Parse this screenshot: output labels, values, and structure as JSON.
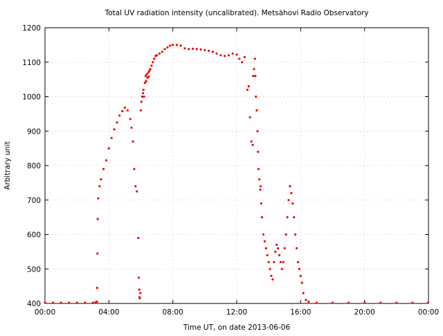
{
  "chart_data": {
    "type": "scatter",
    "title": "Total UV radiation intensity (uncalibrated). Metsähovi Radio Observatory",
    "xlabel": "Time UT, on date 2013-06-06",
    "ylabel": "Arbitrary unit",
    "xlim": [
      "00:00",
      "24:00"
    ],
    "ylim": [
      400,
      1200
    ],
    "x_ticks": [
      "00:00",
      "04:00",
      "08:00",
      "12:00",
      "16:00",
      "20:00",
      "00:00"
    ],
    "y_ticks": [
      "400",
      "500",
      "600",
      "700",
      "800",
      "900",
      "1000",
      "1100",
      "1200"
    ],
    "grid": true,
    "series_color": "#ee0000",
    "series": [
      {
        "x": [
          "00:00",
          "00:30",
          "01:00",
          "01:30",
          "02:00",
          "02:30",
          "03:00",
          "03:10",
          "03:15",
          "03:16",
          "03:17",
          "03:18",
          "03:20",
          "03:25",
          "03:30",
          "03:40",
          "03:50",
          "04:00",
          "04:10",
          "04:20",
          "04:30",
          "04:40",
          "04:50",
          "05:00",
          "05:10",
          "05:20",
          "05:25",
          "05:30",
          "05:35",
          "05:40",
          "05:45",
          "05:50",
          "05:52",
          "05:54",
          "05:55",
          "05:56",
          "05:58",
          "06:00",
          "06:02",
          "06:05",
          "06:08",
          "06:10",
          "06:12",
          "06:15",
          "06:18",
          "06:20",
          "06:22",
          "06:25",
          "06:28",
          "06:30",
          "06:32",
          "06:35",
          "06:40",
          "06:45",
          "06:50",
          "06:55",
          "07:00",
          "07:10",
          "07:20",
          "07:30",
          "07:40",
          "07:50",
          "08:00",
          "08:15",
          "08:30",
          "08:45",
          "09:00",
          "09:15",
          "09:30",
          "09:45",
          "10:00",
          "10:15",
          "10:30",
          "10:45",
          "11:00",
          "11:15",
          "11:30",
          "11:45",
          "12:00",
          "12:10",
          "12:20",
          "12:30",
          "12:40",
          "12:45",
          "12:50",
          "12:55",
          "13:00",
          "13:02",
          "13:05",
          "13:08",
          "13:10",
          "13:12",
          "13:15",
          "13:18",
          "13:20",
          "13:22",
          "13:25",
          "13:28",
          "13:30",
          "13:32",
          "13:35",
          "13:40",
          "13:45",
          "13:50",
          "13:55",
          "14:00",
          "14:05",
          "14:10",
          "14:15",
          "14:20",
          "14:25",
          "14:30",
          "14:35",
          "14:40",
          "14:45",
          "14:50",
          "14:55",
          "15:00",
          "15:05",
          "15:10",
          "15:15",
          "15:20",
          "15:25",
          "15:30",
          "15:35",
          "15:40",
          "15:45",
          "15:50",
          "15:55",
          "16:00",
          "16:05",
          "16:10",
          "16:20",
          "16:30",
          "17:00",
          "18:00",
          "19:00",
          "20:00",
          "21:00",
          "22:00",
          "23:00",
          "23:59"
        ],
        "y": [
          402,
          402,
          402,
          402,
          402,
          402,
          402,
          403,
          405,
          445,
          545,
          645,
          705,
          740,
          760,
          790,
          815,
          850,
          880,
          905,
          925,
          945,
          958,
          968,
          960,
          935,
          910,
          870,
          790,
          740,
          725,
          590,
          475,
          440,
          418,
          415,
          430,
          960,
          985,
          1000,
          1010,
          1020,
          1000,
          1040,
          1060,
          1045,
          1065,
          1055,
          1070,
          1058,
          1075,
          1080,
          1090,
          1100,
          1110,
          1118,
          1120,
          1125,
          1130,
          1138,
          1143,
          1148,
          1150,
          1150,
          1148,
          1140,
          1138,
          1139,
          1138,
          1137,
          1135,
          1133,
          1130,
          1125,
          1120,
          1118,
          1120,
          1125,
          1122,
          1110,
          1100,
          1115,
          1020,
          1030,
          940,
          870,
          860,
          1060,
          1080,
          1110,
          1060,
          1000,
          960,
          900,
          840,
          790,
          760,
          730,
          740,
          690,
          650,
          600,
          580,
          560,
          540,
          520,
          500,
          480,
          470,
          520,
          550,
          570,
          560,
          540,
          520,
          500,
          520,
          560,
          600,
          650,
          700,
          740,
          720,
          690,
          650,
          600,
          560,
          520,
          500,
          480,
          460,
          430,
          410,
          405,
          402,
          402,
          402,
          402,
          402,
          402,
          402,
          402
        ]
      }
    ]
  }
}
